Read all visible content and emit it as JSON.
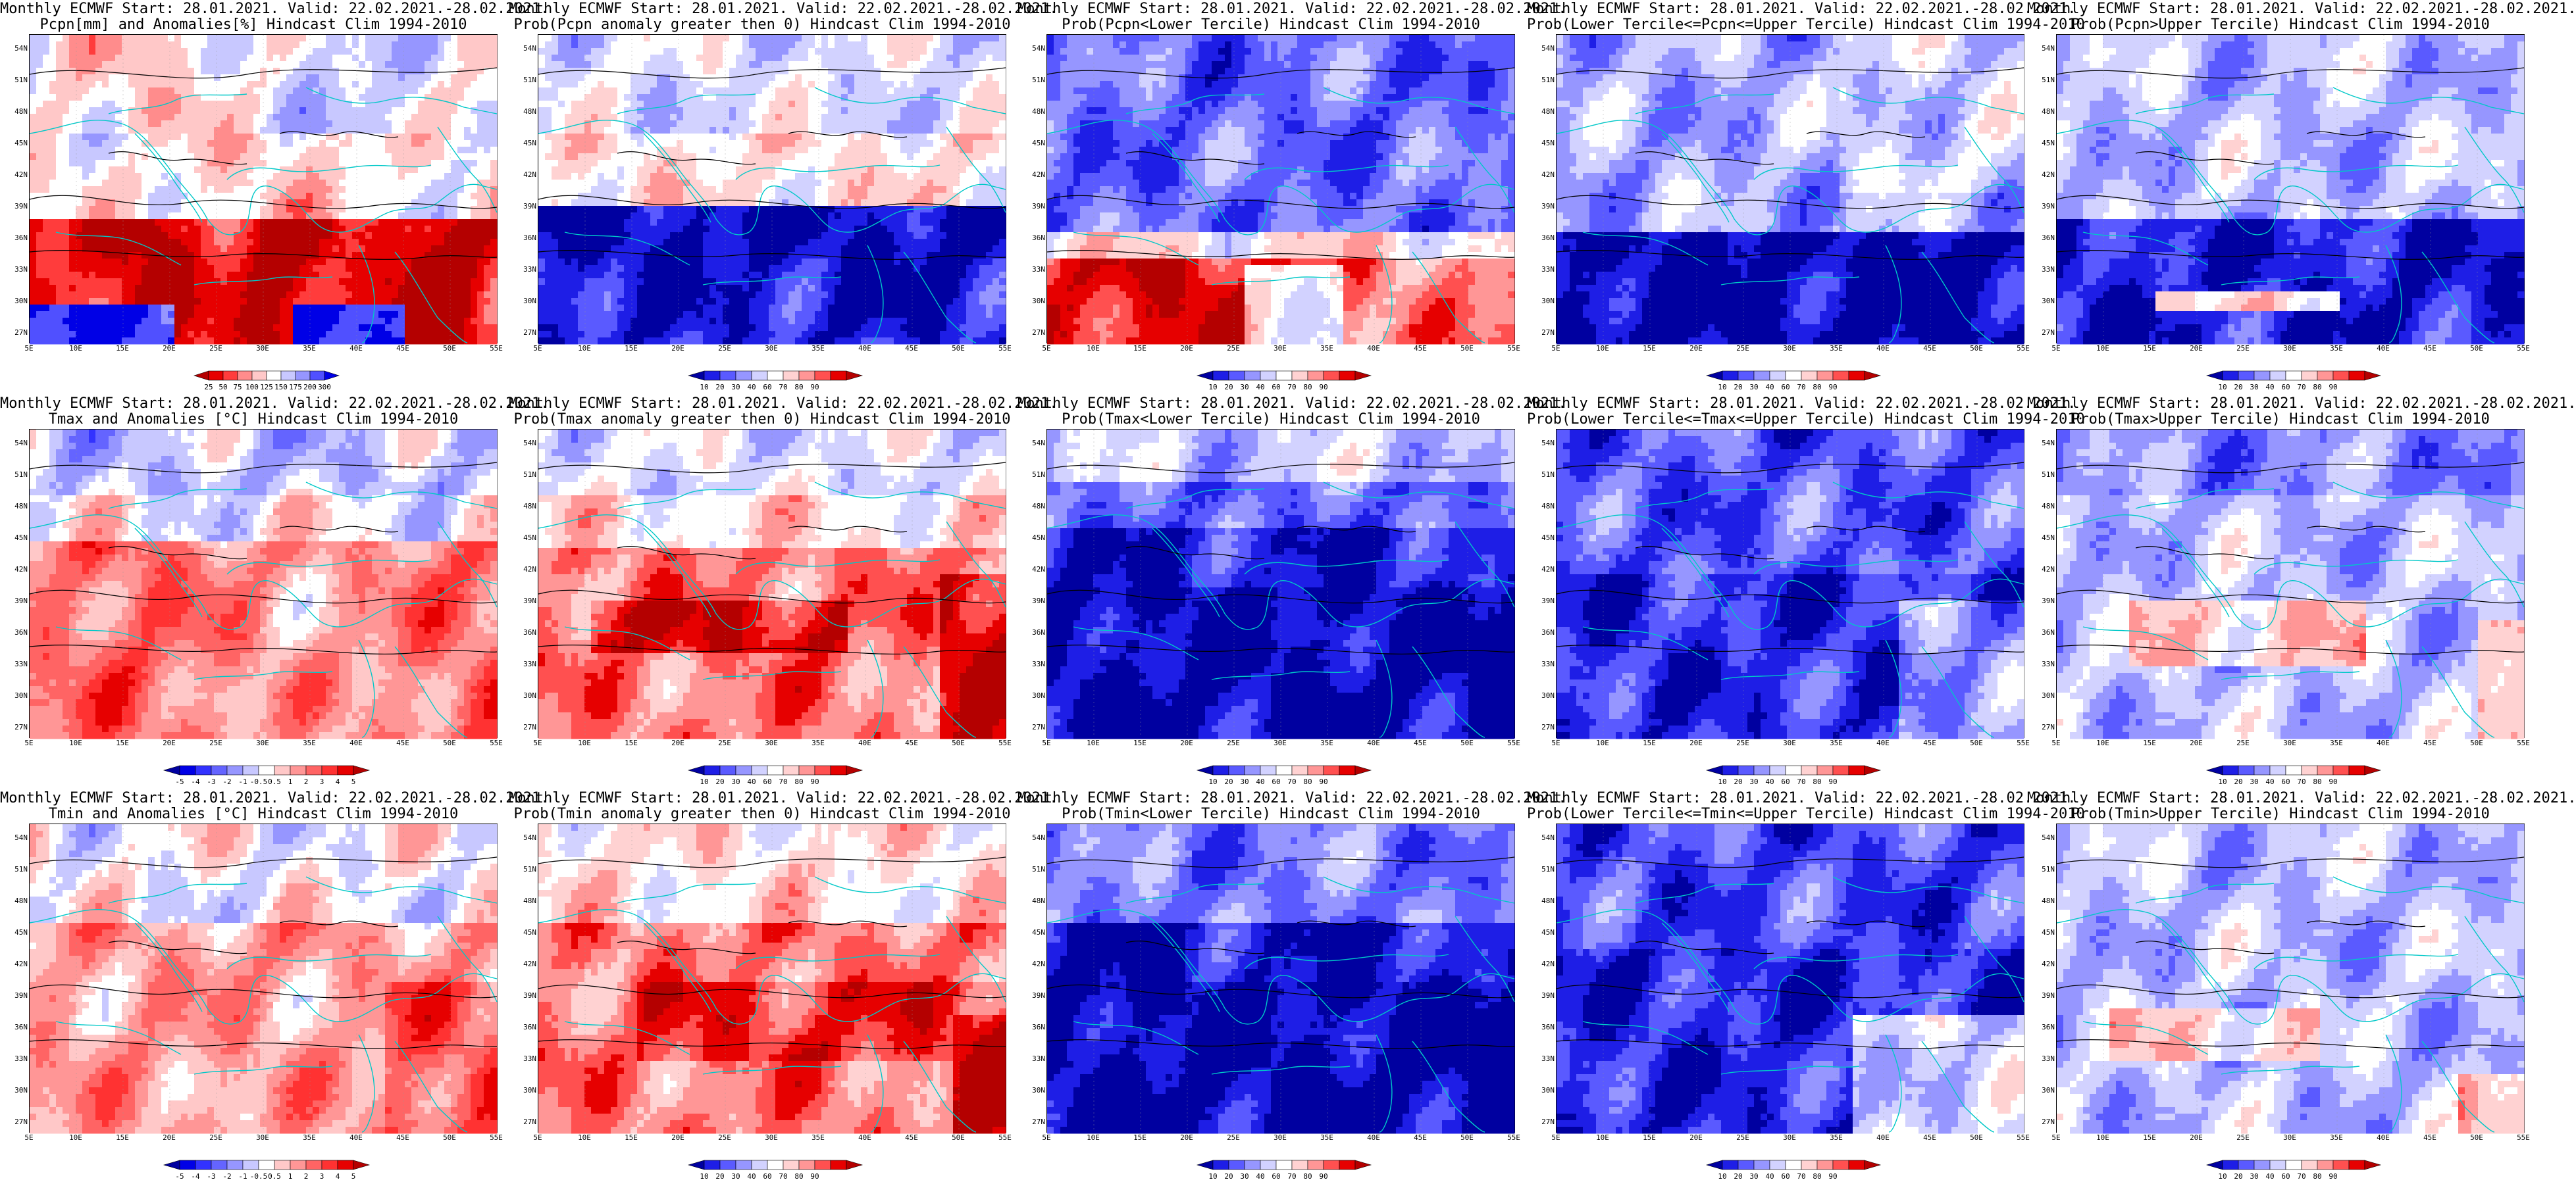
{
  "figure": {
    "panels": [
      {
        "title1": "Monthly ECMWF Start: 28.01.2021. Valid: 22.02.2021.-28.02.2021.",
        "title2": "Pcpn[mm] and Anomalies[%] Hindcast Clim 1994-2010",
        "scale": "pcpn",
        "pattern": "pcpn_anom"
      },
      {
        "title1": "Monthly ECMWF Start: 28.01.2021. Valid: 22.02.2021.-28.02.2021.",
        "title2": "Prob(Pcpn anomaly greater then 0) Hindcast Clim 1994-2010",
        "scale": "prob",
        "pattern": "pcpn_prob_pos"
      },
      {
        "title1": "Monthly ECMWF Start: 28.01.2021. Valid: 22.02.2021.-28.02.2021.",
        "title2": "Prob(Pcpn<Lower Tercile) Hindcast Clim 1994-2010",
        "scale": "prob",
        "pattern": "pcpn_prob_lower"
      },
      {
        "title1": "Monthly ECMWF Start: 28.01.2021. Valid: 22.02.2021.-28.02.2021.",
        "title2": "Prob(Lower Tercile<=Pcpn<=Upper Tercile) Hindcast Clim 1994-2010",
        "scale": "prob",
        "pattern": "pcpn_prob_mid"
      },
      {
        "title1": "Monthly ECMWF Start: 28.01.2021. Valid: 22.02.2021.-28.02.2021.",
        "title2": "Prob(Pcpn>Upper Tercile) Hindcast Clim 1994-2010",
        "scale": "prob",
        "pattern": "pcpn_prob_upper"
      },
      {
        "title1": "Monthly ECMWF Start: 28.01.2021. Valid: 22.02.2021.-28.02.2021.",
        "title2": "Tmax and Anomalies [°C] Hindcast Clim 1994-2010",
        "scale": "temp",
        "pattern": "tmax_anom"
      },
      {
        "title1": "Monthly ECMWF Start: 28.01.2021. Valid: 22.02.2021.-28.02.2021.",
        "title2": "Prob(Tmax anomaly greater then 0) Hindcast Clim 1994-2010",
        "scale": "prob",
        "pattern": "tmax_prob_pos"
      },
      {
        "title1": "Monthly ECMWF Start: 28.01.2021. Valid: 22.02.2021.-28.02.2021.",
        "title2": "Prob(Tmax<Lower Tercile) Hindcast Clim 1994-2010",
        "scale": "prob",
        "pattern": "tmax_prob_lower"
      },
      {
        "title1": "Monthly ECMWF Start: 28.01.2021. Valid: 22.02.2021.-28.02.2021.",
        "title2": "Prob(Lower Tercile<=Tmax<=Upper Tercile) Hindcast Clim 1994-2010",
        "scale": "prob",
        "pattern": "tmax_prob_mid"
      },
      {
        "title1": "Monthly ECMWF Start: 28.01.2021. Valid: 22.02.2021.-28.02.2021.",
        "title2": "Prob(Tmax>Upper Tercile) Hindcast Clim 1994-2010",
        "scale": "prob",
        "pattern": "tmax_prob_upper"
      },
      {
        "title1": "Monthly ECMWF Start: 28.01.2021. Valid: 22.02.2021.-28.02.2021.",
        "title2": "Tmin and Anomalies [°C] Hindcast Clim 1994-2010",
        "scale": "temp",
        "pattern": "tmin_anom"
      },
      {
        "title1": "Monthly ECMWF Start: 28.01.2021. Valid: 22.02.2021.-28.02.2021.",
        "title2": "Prob(Tmin anomaly greater then 0) Hindcast Clim 1994-2010",
        "scale": "prob",
        "pattern": "tmin_prob_pos"
      },
      {
        "title1": "Monthly ECMWF Start: 28.01.2021. Valid: 22.02.2021.-28.02.2021.",
        "title2": "Prob(Tmin<Lower Tercile) Hindcast Clim 1994-2010",
        "scale": "prob",
        "pattern": "tmin_prob_lower"
      },
      {
        "title1": "Monthly ECMWF Start: 28.01.2021. Valid: 22.02.2021.-28.02.2021.",
        "title2": "Prob(Lower Tercile<=Tmin<=Upper Tercile) Hindcast Clim 1994-2010",
        "scale": "prob",
        "pattern": "tmin_prob_mid"
      },
      {
        "title1": "Monthly ECMWF Start: 28.01.2021. Valid: 22.02.2021.-28.02.2021.",
        "title2": "Prob(Tmin>Upper Tercile) Hindcast Clim 1994-2010",
        "scale": "prob",
        "pattern": "tmin_prob_upper"
      }
    ],
    "x_ticks": [
      "5E",
      "10E",
      "15E",
      "20E",
      "25E",
      "30E",
      "35E",
      "40E",
      "45E",
      "50E",
      "55E"
    ],
    "y_ticks": [
      "54N",
      "51N",
      "48N",
      "45N",
      "42N",
      "39N",
      "36N",
      "33N",
      "30N",
      "27N"
    ],
    "colorbars": {
      "pcpn": {
        "labels": [
          "25",
          "50",
          "75",
          "100",
          "125",
          "150",
          "175",
          "200",
          "300"
        ],
        "colors": [
          "#b40000",
          "#e60000",
          "#ff3c3c",
          "#ff8c8c",
          "#ffc8c8",
          "#ffffff",
          "#c8c8ff",
          "#9696ff",
          "#5050ff",
          "#0000e6"
        ]
      },
      "prob": {
        "labels": [
          "10",
          "20",
          "30",
          "40",
          "60",
          "70",
          "80",
          "90"
        ],
        "colors": [
          "#0000a0",
          "#1e1ee6",
          "#5a5aff",
          "#9696ff",
          "#d2d2ff",
          "#ffffff",
          "#ffd2d2",
          "#ff9696",
          "#ff5050",
          "#e60000",
          "#b40000"
        ]
      },
      "temp": {
        "labels": [
          "-5",
          "-4",
          "-3",
          "-2",
          "-1",
          "-0.5",
          "0.5",
          "1",
          "2",
          "3",
          "4",
          "5"
        ],
        "colors": [
          "#0000a0",
          "#0000e6",
          "#3232ff",
          "#6464ff",
          "#9696ff",
          "#c8c8ff",
          "#ffffff",
          "#ffc8c8",
          "#ff9696",
          "#ff6464",
          "#ff3232",
          "#e60000",
          "#b40000"
        ]
      }
    },
    "colors": {
      "coastline": "#00c8c8",
      "contour": "#000000",
      "blue_dark": "#0000a0",
      "blue_light": "#c8c8ff",
      "red_dark": "#b40000",
      "red_light": "#ffc8c8"
    }
  }
}
